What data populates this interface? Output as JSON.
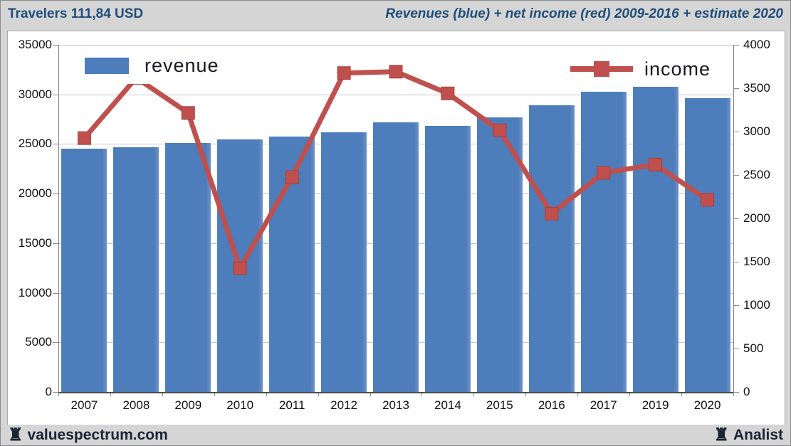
{
  "header": {
    "left_title": "Travelers 111,84 USD",
    "right_title": "Revenues (blue) + net income (red) 2009-2016 + estimate 2020"
  },
  "legend": {
    "revenue_label": "revenue",
    "income_label": "income"
  },
  "footer": {
    "left_brand": "valuespectrum.com",
    "right_brand": "Analist",
    "rook_icon": "♜"
  },
  "colors": {
    "bar_blue": "#4d7dbb",
    "line_red": "#c0504d",
    "marker_stroke": "#a8403c",
    "title_blue": "#1f4e7b",
    "band_gray": "#d5d5d5",
    "grid_gray": "#c6c6c6"
  },
  "chart_data": {
    "type": "bar",
    "subtype": "combo bar+line, dual axis",
    "title": "Revenues (blue) + net income (red) 2009-2016 + estimate 2020",
    "categories": [
      "2007",
      "2008",
      "2009",
      "2010",
      "2011",
      "2012",
      "2013",
      "2014",
      "2015",
      "2016",
      "2017",
      "2019",
      "2020"
    ],
    "series": [
      {
        "name": "revenue",
        "type": "bar",
        "axis": "left",
        "values": [
          24500,
          24700,
          25100,
          25450,
          25750,
          26200,
          27150,
          26850,
          27650,
          28900,
          30300,
          31350,
          29600
        ]
      },
      {
        "name": "income",
        "type": "line",
        "axis": "right",
        "values": [
          2925,
          3620,
          3215,
          1425,
          2475,
          3675,
          3690,
          3440,
          3015,
          2055,
          2525,
          2620,
          2215
        ]
      }
    ],
    "left_axis": {
      "min": 0,
      "max": 35000,
      "step": 5000,
      "ticks": [
        "0",
        "5000",
        "10000",
        "15000",
        "20000",
        "25000",
        "30000",
        "35000"
      ]
    },
    "right_axis": {
      "min": 0,
      "max": 4000,
      "step": 500,
      "ticks": [
        "0",
        "500",
        "1000",
        "1500",
        "2000",
        "2500",
        "3000",
        "3500",
        "4000"
      ]
    },
    "grid": true,
    "legend_position": "revenue top-left, income top-right"
  }
}
